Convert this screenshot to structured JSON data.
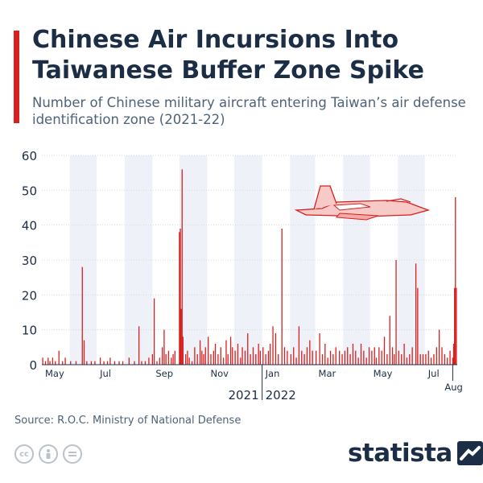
{
  "header": {
    "title": "Chinese Air Incursions Into Taiwanese Buffer Zone Spike",
    "subtitle": "Number of Chinese military aircraft entering Taiwan’s air defense identification zone (2021-22)"
  },
  "footer": {
    "source": "Source: R.O.C. Ministry of National Defense",
    "brand": "statista"
  },
  "colors": {
    "accent": "#d7201f",
    "bar": "#d7201f",
    "band": "#eef1f7",
    "grid": "#d6dbe2",
    "axis_text": "#1b2e45",
    "title": "#1b2e45"
  },
  "icons": {
    "decoration": "fighter-jet-icon",
    "license": [
      "creative-commons-icon",
      "attribution-icon",
      "no-derivatives-icon"
    ],
    "brand": "statista-logo-icon"
  },
  "chart_data": {
    "type": "bar",
    "title": "Chinese Air Incursions Into Taiwanese Buffer Zone Spike",
    "subtitle": "Number of Chinese military aircraft entering Taiwan’s air defense identification zone (2021-22)",
    "x_start": "2021-05-01",
    "x_end": "2022-08-06",
    "ylim": [
      0,
      60
    ],
    "yticks": [
      0,
      10,
      20,
      30,
      40,
      50,
      60
    ],
    "grid": true,
    "month_ticks": [
      "May",
      "Jul",
      "Sep",
      "Nov",
      "Jan",
      "Mar",
      "May",
      "Jul",
      "Aug"
    ],
    "year_labels": [
      "2021",
      "2022"
    ],
    "shaded_bands": [
      {
        "from": "2021-06-01",
        "to": "2021-06-30"
      },
      {
        "from": "2021-08-01",
        "to": "2021-08-31"
      },
      {
        "from": "2021-10-01",
        "to": "2021-10-31"
      },
      {
        "from": "2021-12-01",
        "to": "2021-12-31"
      },
      {
        "from": "2022-02-01",
        "to": "2022-02-28"
      },
      {
        "from": "2022-04-01",
        "to": "2022-04-30"
      },
      {
        "from": "2022-06-01",
        "to": "2022-06-30"
      }
    ],
    "series": [
      {
        "points": [
          [
            "2021-05-02",
            2
          ],
          [
            "2021-05-05",
            1
          ],
          [
            "2021-05-08",
            2
          ],
          [
            "2021-05-10",
            1
          ],
          [
            "2021-05-13",
            2
          ],
          [
            "2021-05-16",
            1
          ],
          [
            "2021-05-20",
            4
          ],
          [
            "2021-05-24",
            1
          ],
          [
            "2021-05-27",
            2
          ],
          [
            "2021-06-02",
            1
          ],
          [
            "2021-06-08",
            1
          ],
          [
            "2021-06-15",
            28
          ],
          [
            "2021-06-17",
            7
          ],
          [
            "2021-06-20",
            1
          ],
          [
            "2021-06-25",
            1
          ],
          [
            "2021-06-29",
            1
          ],
          [
            "2021-07-05",
            2
          ],
          [
            "2021-07-09",
            1
          ],
          [
            "2021-07-13",
            1
          ],
          [
            "2021-07-16",
            2
          ],
          [
            "2021-07-21",
            1
          ],
          [
            "2021-07-26",
            1
          ],
          [
            "2021-07-30",
            1
          ],
          [
            "2021-08-06",
            2
          ],
          [
            "2021-08-12",
            1
          ],
          [
            "2021-08-17",
            11
          ],
          [
            "2021-08-20",
            1
          ],
          [
            "2021-08-24",
            1
          ],
          [
            "2021-08-28",
            2
          ],
          [
            "2021-09-01",
            3
          ],
          [
            "2021-09-03",
            19
          ],
          [
            "2021-09-06",
            1
          ],
          [
            "2021-09-09",
            2
          ],
          [
            "2021-09-12",
            5
          ],
          [
            "2021-09-14",
            10
          ],
          [
            "2021-09-16",
            3
          ],
          [
            "2021-09-19",
            4
          ],
          [
            "2021-09-22",
            2
          ],
          [
            "2021-09-24",
            3
          ],
          [
            "2021-09-26",
            4
          ],
          [
            "2021-10-01",
            38
          ],
          [
            "2021-10-02",
            39
          ],
          [
            "2021-10-03",
            16
          ],
          [
            "2021-10-04",
            56
          ],
          [
            "2021-10-05",
            8
          ],
          [
            "2021-10-08",
            3
          ],
          [
            "2021-10-10",
            4
          ],
          [
            "2021-10-12",
            2
          ],
          [
            "2021-10-15",
            1
          ],
          [
            "2021-10-18",
            5
          ],
          [
            "2021-10-21",
            3
          ],
          [
            "2021-10-24",
            7
          ],
          [
            "2021-10-26",
            4
          ],
          [
            "2021-10-28",
            3
          ],
          [
            "2021-10-30",
            5
          ],
          [
            "2021-11-02",
            8
          ],
          [
            "2021-11-05",
            3
          ],
          [
            "2021-11-08",
            4
          ],
          [
            "2021-11-10",
            6
          ],
          [
            "2021-11-13",
            3
          ],
          [
            "2021-11-16",
            5
          ],
          [
            "2021-11-19",
            2
          ],
          [
            "2021-11-22",
            7
          ],
          [
            "2021-11-24",
            3
          ],
          [
            "2021-11-27",
            8
          ],
          [
            "2021-11-29",
            5
          ],
          [
            "2021-12-02",
            4
          ],
          [
            "2021-12-05",
            6
          ],
          [
            "2021-12-08",
            2
          ],
          [
            "2021-12-10",
            5
          ],
          [
            "2021-12-13",
            4
          ],
          [
            "2021-12-16",
            9
          ],
          [
            "2021-12-19",
            3
          ],
          [
            "2021-12-22",
            5
          ],
          [
            "2021-12-25",
            3
          ],
          [
            "2021-12-28",
            6
          ],
          [
            "2021-12-30",
            4
          ],
          [
            "2022-01-02",
            5
          ],
          [
            "2022-01-05",
            3
          ],
          [
            "2022-01-08",
            4
          ],
          [
            "2022-01-10",
            6
          ],
          [
            "2022-01-13",
            11
          ],
          [
            "2022-01-16",
            9
          ],
          [
            "2022-01-19",
            3
          ],
          [
            "2022-01-23",
            39
          ],
          [
            "2022-01-26",
            5
          ],
          [
            "2022-01-29",
            4
          ],
          [
            "2022-02-02",
            3
          ],
          [
            "2022-02-05",
            5
          ],
          [
            "2022-02-08",
            2
          ],
          [
            "2022-02-11",
            11
          ],
          [
            "2022-02-14",
            4
          ],
          [
            "2022-02-17",
            3
          ],
          [
            "2022-02-20",
            5
          ],
          [
            "2022-02-23",
            7
          ],
          [
            "2022-02-26",
            4
          ],
          [
            "2022-03-02",
            4
          ],
          [
            "2022-03-06",
            9
          ],
          [
            "2022-03-09",
            3
          ],
          [
            "2022-03-12",
            6
          ],
          [
            "2022-03-15",
            2
          ],
          [
            "2022-03-18",
            4
          ],
          [
            "2022-03-21",
            3
          ],
          [
            "2022-03-24",
            5
          ],
          [
            "2022-03-28",
            4
          ],
          [
            "2022-03-31",
            3
          ],
          [
            "2022-04-03",
            4
          ],
          [
            "2022-04-06",
            5
          ],
          [
            "2022-04-09",
            3
          ],
          [
            "2022-04-12",
            6
          ],
          [
            "2022-04-15",
            4
          ],
          [
            "2022-04-18",
            2
          ],
          [
            "2022-04-21",
            6
          ],
          [
            "2022-04-24",
            4
          ],
          [
            "2022-04-27",
            2
          ],
          [
            "2022-04-30",
            5
          ],
          [
            "2022-05-03",
            4
          ],
          [
            "2022-05-06",
            5
          ],
          [
            "2022-05-08",
            2
          ],
          [
            "2022-05-11",
            5
          ],
          [
            "2022-05-14",
            4
          ],
          [
            "2022-05-17",
            8
          ],
          [
            "2022-05-20",
            3
          ],
          [
            "2022-05-23",
            14
          ],
          [
            "2022-05-26",
            5
          ],
          [
            "2022-05-28",
            3
          ],
          [
            "2022-05-30",
            30
          ],
          [
            "2022-06-02",
            4
          ],
          [
            "2022-06-05",
            3
          ],
          [
            "2022-06-08",
            6
          ],
          [
            "2022-06-11",
            2
          ],
          [
            "2022-06-14",
            3
          ],
          [
            "2022-06-17",
            5
          ],
          [
            "2022-06-21",
            29
          ],
          [
            "2022-06-23",
            22
          ],
          [
            "2022-06-26",
            3
          ],
          [
            "2022-06-29",
            3
          ],
          [
            "2022-07-02",
            3
          ],
          [
            "2022-07-05",
            4
          ],
          [
            "2022-07-08",
            2
          ],
          [
            "2022-07-11",
            3
          ],
          [
            "2022-07-14",
            5
          ],
          [
            "2022-07-17",
            10
          ],
          [
            "2022-07-20",
            5
          ],
          [
            "2022-07-23",
            3
          ],
          [
            "2022-07-26",
            2
          ],
          [
            "2022-07-29",
            4
          ],
          [
            "2022-08-01",
            2
          ],
          [
            "2022-08-02",
            6
          ],
          [
            "2022-08-03",
            22
          ],
          [
            "2022-08-04",
            48
          ],
          [
            "2022-08-05",
            22
          ]
        ]
      }
    ]
  }
}
